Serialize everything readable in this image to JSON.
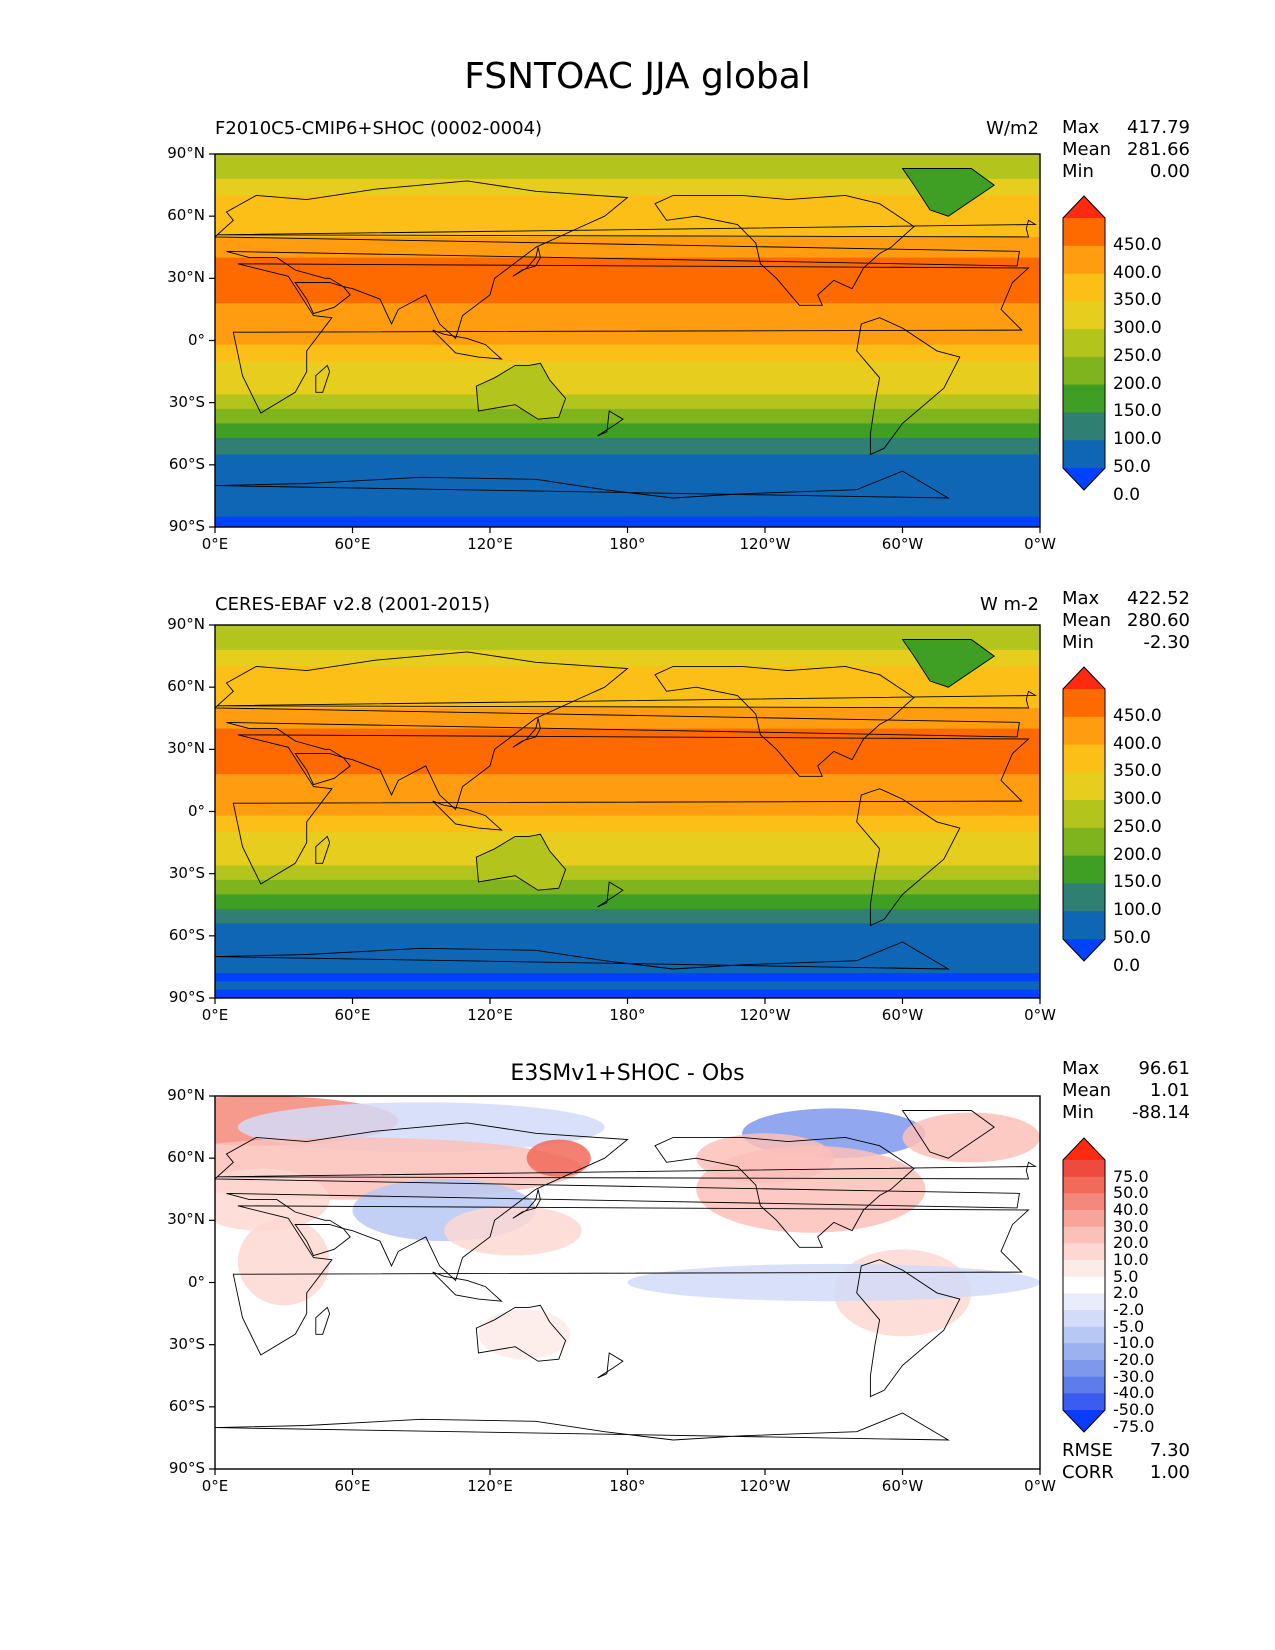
{
  "title": "FSNTOAC JJA global",
  "lat_labels": [
    "90°N",
    "60°N",
    "30°N",
    "0°",
    "30°S",
    "60°S",
    "90°S"
  ],
  "lon_labels": [
    "0°E",
    "60°E",
    "120°E",
    "180°",
    "120°W",
    "60°W",
    "0°W"
  ],
  "panels": [
    {
      "id": "test",
      "title_left": "F2010C5-CMIP6+SHOC (0002-0004)",
      "units": "W/m2",
      "stats": {
        "max_label": "Max",
        "max": "417.79",
        "mean_label": "Mean",
        "mean": "281.66",
        "min_label": "Min",
        "min": "0.00"
      },
      "colorbar_labels": [
        "450.0",
        "400.0",
        "350.0",
        "300.0",
        "250.0",
        "200.0",
        "150.0",
        "100.0",
        "50.0",
        "0.0"
      ],
      "colorbar_colors": [
        "#ff2a10",
        "#ff6a00",
        "#ff9c10",
        "#fcbf18",
        "#e6cd1e",
        "#b3c51c",
        "#7fb41f",
        "#3f9f25",
        "#2f7f72",
        "#0e66b4",
        "#0040ff"
      ]
    },
    {
      "id": "reference",
      "title_left": "CERES-EBAF v2.8 (2001-2015)",
      "units": "W m-2",
      "stats": {
        "max_label": "Max",
        "max": "422.52",
        "mean_label": "Mean",
        "mean": "280.60",
        "min_label": "Min",
        "min": "-2.30"
      },
      "colorbar_labels": [
        "450.0",
        "400.0",
        "350.0",
        "300.0",
        "250.0",
        "200.0",
        "150.0",
        "100.0",
        "50.0",
        "0.0"
      ],
      "colorbar_colors": [
        "#ff2a10",
        "#ff6a00",
        "#ff9c10",
        "#fcbf18",
        "#e6cd1e",
        "#b3c51c",
        "#7fb41f",
        "#3f9f25",
        "#2f7f72",
        "#0e66b4",
        "#0040ff"
      ]
    },
    {
      "id": "difference",
      "title_center": "E3SMv1+SHOC - Obs",
      "stats": {
        "max_label": "Max",
        "max": "96.61",
        "mean_label": "Mean",
        "mean": "1.01",
        "min_label": "Min",
        "min": "-88.14"
      },
      "rmse_label": "RMSE",
      "rmse": "7.30",
      "corr_label": "CORR",
      "corr": "1.00",
      "colorbar_labels": [
        "75.0",
        "50.0",
        "40.0",
        "30.0",
        "20.0",
        "10.0",
        "5.0",
        "2.0",
        "-2.0",
        "-5.0",
        "-10.0",
        "-20.0",
        "-30.0",
        "-40.0",
        "-50.0",
        "-75.0"
      ],
      "colorbar_colors": [
        "#ff2a10",
        "#ee4a40",
        "#f26a5a",
        "#f5887a",
        "#f8a49a",
        "#fbc0b8",
        "#fdd8d2",
        "#fdebe8",
        "#ffffff",
        "#e8ecfb",
        "#d2dbf8",
        "#b8c8f4",
        "#9cb2f0",
        "#7e98ec",
        "#5e7cea",
        "#3a5cf0",
        "#0a3cff"
      ]
    }
  ]
}
